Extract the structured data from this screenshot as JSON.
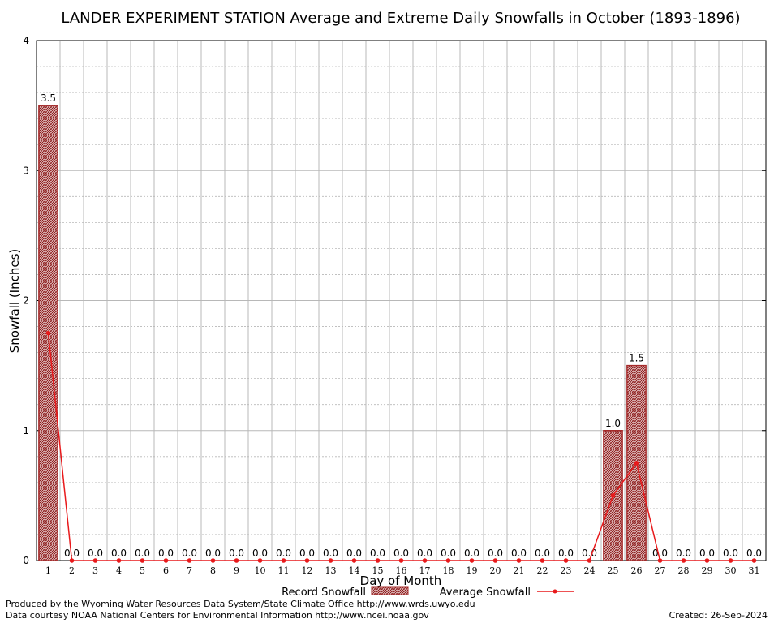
{
  "chart_data": {
    "type": "bar",
    "title": "LANDER EXPERIMENT STATION Average and Extreme Daily Snowfalls in October (1893-1896)",
    "xlabel": "Day of Month",
    "ylabel": "Snowfall (Inches)",
    "ylim": [
      0,
      4
    ],
    "yticks": [
      "0",
      "1",
      "2",
      "3",
      "4"
    ],
    "grid": true,
    "categories": [
      "1",
      "2",
      "3",
      "4",
      "5",
      "6",
      "7",
      "8",
      "9",
      "10",
      "11",
      "12",
      "13",
      "14",
      "15",
      "16",
      "17",
      "18",
      "19",
      "20",
      "21",
      "22",
      "23",
      "24",
      "25",
      "26",
      "27",
      "28",
      "29",
      "30",
      "31"
    ],
    "series": [
      {
        "name": "Record Snowfall",
        "kind": "bar",
        "color": "#a52a2a",
        "values": [
          3.5,
          0,
          0,
          0,
          0,
          0,
          0,
          0,
          0,
          0,
          0,
          0,
          0,
          0,
          0,
          0,
          0,
          0,
          0,
          0,
          0,
          0,
          0,
          0,
          1.0,
          1.5,
          0,
          0,
          0,
          0,
          0
        ],
        "labels": [
          "3.5",
          "0.0",
          "0.0",
          "0.0",
          "0.0",
          "0.0",
          "0.0",
          "0.0",
          "0.0",
          "0.0",
          "0.0",
          "0.0",
          "0.0",
          "0.0",
          "0.0",
          "0.0",
          "0.0",
          "0.0",
          "0.0",
          "0.0",
          "0.0",
          "0.0",
          "0.0",
          "0.0",
          "1.0",
          "1.5",
          "0.0",
          "0.0",
          "0.0",
          "0.0",
          "0.0"
        ]
      },
      {
        "name": "Average Snowfall",
        "kind": "line",
        "color": "#e8191b",
        "values": [
          1.75,
          0,
          0,
          0,
          0,
          0,
          0,
          0,
          0,
          0,
          0,
          0,
          0,
          0,
          0,
          0,
          0,
          0,
          0,
          0,
          0,
          0,
          0,
          0,
          0.5,
          0.75,
          0,
          0,
          0,
          0,
          0
        ]
      }
    ],
    "legend": "bottom"
  },
  "footer": {
    "credit_line1": "Produced by the Wyoming Water Resources Data System/State Climate Office http://www.wrds.uwyo.edu",
    "credit_line2": "Data courtesy NOAA National Centers for Environmental Information http://www.ncei.noaa.gov",
    "created": "Created: 26-Sep-2024"
  }
}
